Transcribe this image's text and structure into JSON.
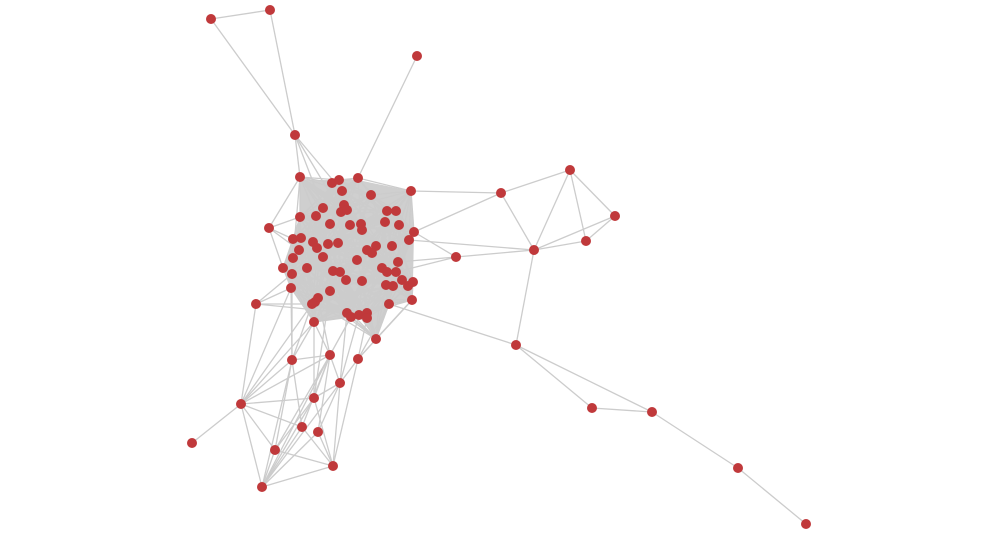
{
  "graph": {
    "type": "network",
    "node_color": "#c0393b",
    "edge_color": "#cccccc",
    "node_count": 96,
    "edges": [
      [
        70,
        71
      ],
      [
        70,
        72
      ],
      [
        71,
        72
      ],
      [
        73,
        3
      ],
      [
        72,
        0
      ],
      [
        72,
        4
      ],
      [
        72,
        7
      ],
      [
        72,
        9
      ],
      [
        74,
        75
      ],
      [
        74,
        76
      ],
      [
        74,
        6
      ],
      [
        74,
        21
      ],
      [
        75,
        77
      ],
      [
        75,
        78
      ],
      [
        75,
        76
      ],
      [
        76,
        78
      ],
      [
        76,
        68
      ],
      [
        76,
        22
      ],
      [
        76,
        79
      ],
      [
        78,
        77
      ],
      [
        76,
        77
      ],
      [
        79,
        58
      ],
      [
        79,
        80
      ],
      [
        79,
        81
      ],
      [
        80,
        81
      ],
      [
        81,
        82
      ],
      [
        82,
        83
      ],
      [
        68,
        21
      ],
      [
        68,
        37
      ],
      [
        68,
        47
      ],
      [
        67,
        0
      ],
      [
        67,
        23
      ],
      [
        67,
        30
      ],
      [
        67,
        38
      ],
      [
        67,
        15
      ],
      [
        69,
        54
      ],
      [
        69,
        57
      ],
      [
        69,
        39
      ],
      [
        69,
        60
      ],
      [
        94,
        95
      ],
      [
        94,
        84
      ],
      [
        94,
        65
      ],
      [
        94,
        85
      ],
      [
        94,
        88
      ],
      [
        94,
        91
      ],
      [
        94,
        92
      ],
      [
        94,
        89
      ],
      [
        94,
        69
      ],
      [
        94,
        54
      ],
      [
        94,
        57
      ],
      [
        92,
        93
      ],
      [
        92,
        89
      ],
      [
        92,
        90
      ],
      [
        92,
        88
      ],
      [
        92,
        84
      ],
      [
        92,
        87
      ],
      [
        92,
        85
      ],
      [
        92,
        91
      ],
      [
        93,
        89
      ],
      [
        93,
        90
      ],
      [
        93,
        88
      ],
      [
        93,
        87
      ],
      [
        93,
        86
      ],
      [
        93,
        91
      ],
      [
        91,
        84
      ],
      [
        91,
        88
      ],
      [
        91,
        85
      ],
      [
        89,
        85
      ],
      [
        90,
        87
      ],
      [
        88,
        85
      ],
      [
        88,
        87
      ],
      [
        84,
        85
      ],
      [
        85,
        87
      ],
      [
        86,
        87
      ],
      [
        86,
        66
      ],
      [
        86,
        64
      ],
      [
        85,
        65
      ],
      [
        84,
        65
      ],
      [
        84,
        57
      ],
      [
        84,
        54
      ],
      [
        84,
        39
      ],
      [
        87,
        60
      ],
      [
        87,
        62
      ],
      [
        88,
        65
      ],
      [
        88,
        53
      ],
      [
        89,
        84
      ],
      [
        90,
        85
      ],
      [
        85,
        61
      ],
      [
        85,
        55
      ],
      [
        86,
        58
      ],
      [
        86,
        59
      ],
      [
        66,
        59
      ],
      [
        66,
        58
      ]
    ]
  }
}
